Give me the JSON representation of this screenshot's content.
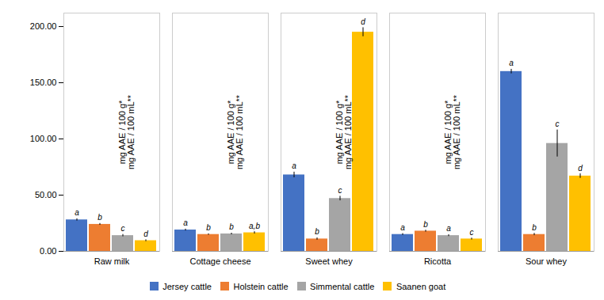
{
  "chart_data": {
    "type": "bar",
    "categories": [
      "Raw milk",
      "Cottage cheese",
      "Sweet whey",
      "Ricotta",
      "Sour whey"
    ],
    "series": [
      {
        "name": "Jersey cattle",
        "color": "#4472C4",
        "values": [
          28.0,
          19.0,
          68.0,
          15.0,
          160.0
        ],
        "errors": [
          1.0,
          0.8,
          2.5,
          0.8,
          2.0
        ],
        "labels": [
          "a",
          "a",
          "a",
          "a",
          "a"
        ]
      },
      {
        "name": "Holstein cattle",
        "color": "#ED7D31",
        "values": [
          24.0,
          15.0,
          11.0,
          18.0,
          15.0
        ],
        "errors": [
          0.8,
          0.6,
          1.0,
          0.8,
          1.0
        ],
        "labels": [
          "b",
          "b",
          "b",
          "b",
          "b"
        ]
      },
      {
        "name": "Simmental cattle",
        "color": "#A5A5A5",
        "values": [
          14.0,
          15.5,
          47.0,
          14.0,
          96.0
        ],
        "errors": [
          1.0,
          0.7,
          2.0,
          0.8,
          12.0
        ],
        "labels": [
          "c",
          "b",
          "c",
          "a",
          "c"
        ]
      },
      {
        "name": "Saanen goat",
        "color": "#FFC000",
        "values": [
          9.5,
          16.5,
          195.0,
          11.0,
          67.0
        ],
        "errors": [
          0.8,
          1.0,
          4.0,
          0.8,
          2.0
        ],
        "labels": [
          "d",
          "a,b",
          "d",
          "c",
          "d"
        ]
      }
    ],
    "ylabel": "mg AAE / 100 g*\nmg AAE / 100 mL**",
    "ylim": [
      0,
      212
    ],
    "yticks": [
      {
        "value": 0,
        "label": "0.00"
      },
      {
        "value": 50,
        "label": "50.00"
      },
      {
        "value": 100,
        "label": "100.00"
      },
      {
        "value": 150,
        "label": "150.00"
      },
      {
        "value": 200,
        "label": "200.00"
      }
    ],
    "grid": false,
    "legend": "bottom"
  }
}
